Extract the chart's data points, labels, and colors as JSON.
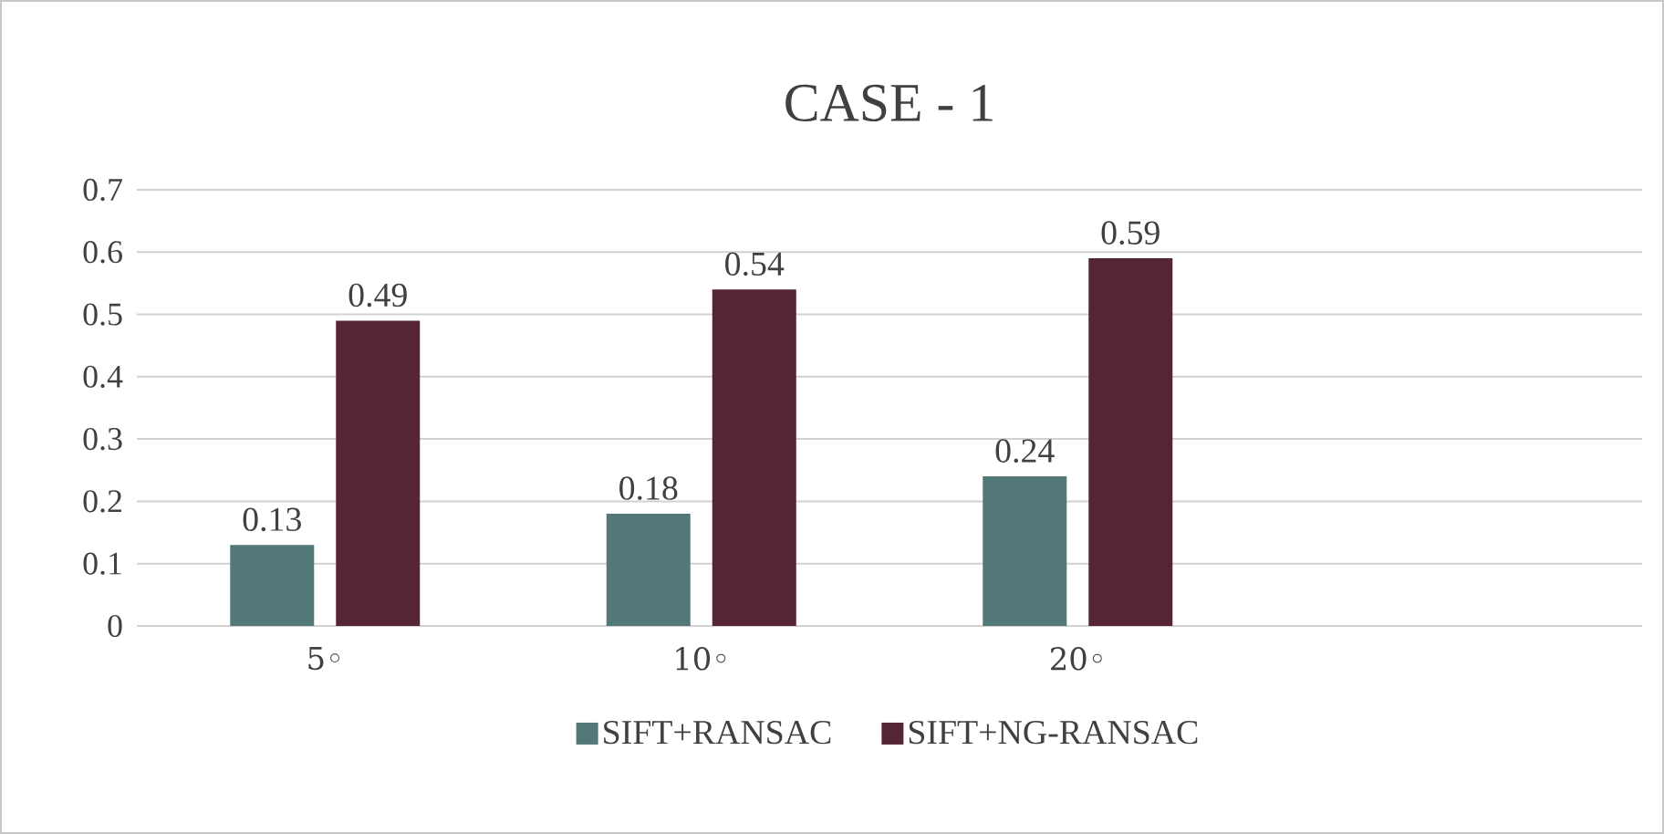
{
  "chart_data": {
    "type": "bar",
    "title": "CASE - 1",
    "categories": [
      "5◦",
      "10◦",
      "20◦",
      null
    ],
    "series": [
      {
        "name": "SIFT+RANSAC",
        "color": "#537878",
        "values": [
          0.13,
          0.18,
          0.24,
          null
        ]
      },
      {
        "name": "SIFT+NG-RANSAC",
        "color": "#552536",
        "values": [
          0.49,
          0.54,
          0.59,
          null
        ]
      }
    ],
    "ylim": [
      0,
      0.7
    ],
    "yticks": [
      0,
      0.1,
      0.2,
      0.3,
      0.4,
      0.5,
      0.6,
      0.7
    ],
    "grid": "y",
    "legend": "bottom",
    "data_labels": true
  }
}
